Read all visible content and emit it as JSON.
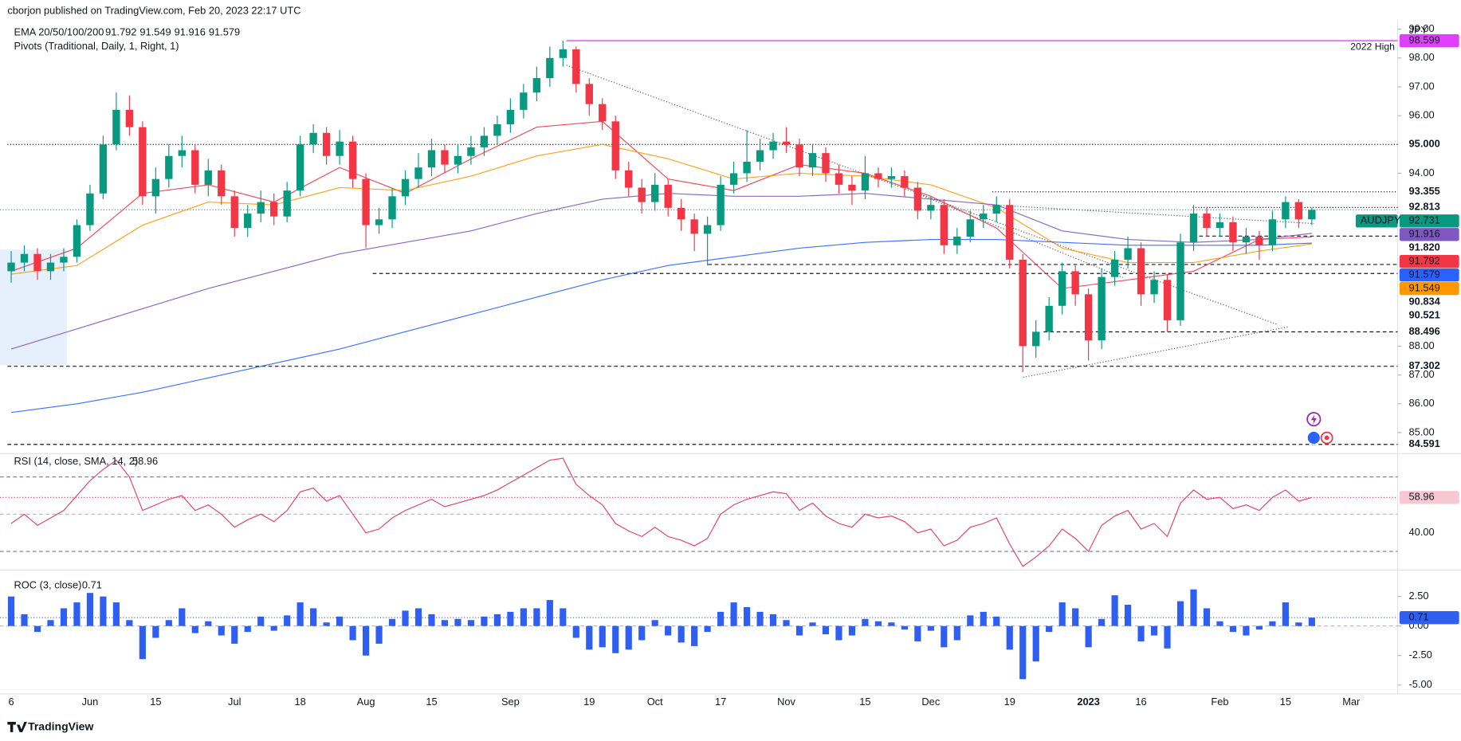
{
  "header": {
    "publisher": "cborjon published on TradingView.com, Feb 20, 2023 22:17 UTC"
  },
  "footer": {
    "brand": "TradingView"
  },
  "chart_data": [
    {
      "type": "candlestick",
      "symbol": "AUDJPY",
      "currency": "JPY",
      "categories": [
        "6",
        null,
        null,
        null,
        null,
        null,
        "Jun",
        null,
        null,
        null,
        null,
        "15",
        null,
        null,
        null,
        null,
        null,
        "Jul",
        null,
        null,
        null,
        null,
        "18",
        null,
        null,
        null,
        null,
        "Aug",
        null,
        null,
        null,
        null,
        "15",
        null,
        null,
        null,
        null,
        null,
        "Sep",
        null,
        null,
        null,
        null,
        null,
        "19",
        null,
        null,
        null,
        null,
        "Oct",
        null,
        null,
        null,
        null,
        "17",
        null,
        null,
        null,
        null,
        "Nov",
        null,
        null,
        null,
        null,
        null,
        "15",
        null,
        null,
        null,
        null,
        "Dec",
        null,
        null,
        null,
        null,
        null,
        "19",
        null,
        null,
        null,
        null,
        null,
        "2023",
        null,
        null,
        null,
        "16",
        null,
        null,
        null,
        null,
        null,
        "Feb",
        null,
        null,
        null,
        null,
        "15",
        null,
        null,
        null,
        null,
        "Mar",
        null
      ],
      "open": [
        90.6,
        90.9,
        91.2,
        90.6,
        90.9,
        91.1,
        92.2,
        93.3,
        95.0,
        96.2,
        95.6,
        93.2,
        93.8,
        94.6,
        94.8,
        93.6,
        94.1,
        93.2,
        92.1,
        92.6,
        93.0,
        92.5,
        93.4,
        95.0,
        95.4,
        94.6,
        95.1,
        93.8,
        92.2,
        92.4,
        93.2,
        93.8,
        94.2,
        94.8,
        94.3,
        94.6,
        94.9,
        95.3,
        95.7,
        96.2,
        96.8,
        97.3,
        98.0,
        98.3,
        97.1,
        96.4,
        95.8,
        94.1,
        93.5,
        93.0,
        93.6,
        92.8,
        92.4,
        91.9,
        92.2,
        93.6,
        94.0,
        94.4,
        94.8,
        95.1,
        95.0,
        94.2,
        94.7,
        94.0,
        93.6,
        93.4,
        94.0,
        93.8,
        93.9,
        93.5,
        92.7,
        92.9,
        91.5,
        91.8,
        92.4,
        92.6,
        92.9,
        91.0,
        88.0,
        88.5,
        89.4,
        90.6,
        89.8,
        88.2,
        90.4,
        91.0,
        91.4,
        89.8,
        90.3,
        88.9,
        91.6,
        92.6,
        92.1,
        92.3,
        91.6,
        91.8,
        91.5,
        92.4,
        93.0,
        92.4,
        null,
        null,
        null,
        null
      ],
      "high": [
        91.3,
        91.5,
        91.4,
        91.2,
        91.4,
        92.4,
        93.6,
        95.3,
        96.8,
        96.7,
        95.8,
        94.2,
        95.0,
        95.3,
        95.0,
        94.5,
        94.3,
        93.4,
        92.9,
        93.4,
        93.3,
        93.7,
        95.3,
        95.7,
        95.6,
        95.5,
        95.3,
        94.0,
        92.8,
        93.5,
        94.1,
        94.7,
        95.2,
        95.0,
        95.0,
        95.3,
        95.6,
        96.0,
        96.6,
        97.1,
        97.7,
        98.4,
        98.6,
        98.4,
        97.3,
        96.6,
        96.0,
        94.4,
        93.8,
        94.0,
        93.8,
        93.1,
        92.6,
        92.5,
        93.9,
        94.4,
        95.5,
        95.2,
        95.4,
        95.6,
        95.2,
        95.0,
        94.9,
        94.3,
        93.9,
        94.6,
        94.2,
        94.2,
        94.1,
        93.7,
        93.2,
        93.1,
        92.1,
        92.7,
        92.9,
        93.2,
        93.1,
        91.2,
        88.9,
        89.7,
        90.9,
        90.8,
        90.0,
        90.7,
        91.3,
        91.8,
        91.6,
        90.6,
        90.5,
        91.9,
        92.9,
        92.8,
        92.6,
        92.5,
        92.1,
        92.0,
        92.7,
        93.2,
        93.1,
        92.8,
        null,
        null,
        null,
        null
      ],
      "low": [
        90.2,
        90.6,
        90.3,
        90.3,
        90.6,
        90.9,
        92.0,
        93.1,
        94.8,
        95.3,
        92.9,
        92.6,
        93.5,
        94.2,
        93.3,
        93.2,
        92.9,
        91.8,
        91.8,
        92.3,
        92.2,
        92.3,
        93.2,
        94.7,
        94.3,
        94.3,
        93.5,
        91.4,
        91.9,
        92.1,
        92.9,
        93.5,
        93.9,
        94.0,
        94.0,
        94.3,
        94.6,
        95.0,
        95.4,
        95.9,
        96.5,
        97.0,
        97.7,
        96.8,
        96.0,
        95.5,
        93.8,
        93.2,
        92.6,
        92.7,
        92.5,
        92.0,
        91.3,
        90.8,
        92.0,
        93.3,
        93.7,
        94.1,
        94.5,
        94.7,
        93.9,
        93.9,
        93.7,
        93.3,
        92.9,
        93.1,
        93.5,
        93.5,
        93.2,
        92.4,
        92.4,
        91.2,
        91.2,
        91.6,
        92.1,
        92.3,
        90.7,
        87.1,
        87.6,
        88.2,
        89.1,
        89.4,
        87.5,
        87.9,
        90.1,
        90.7,
        89.4,
        89.5,
        88.5,
        88.7,
        91.3,
        91.8,
        91.8,
        91.3,
        91.2,
        91.0,
        91.3,
        92.1,
        92.1,
        92.2,
        null,
        null,
        null,
        null
      ],
      "close": [
        90.9,
        91.2,
        90.6,
        90.9,
        91.1,
        92.2,
        93.3,
        95.0,
        96.2,
        95.6,
        93.2,
        93.8,
        94.6,
        94.8,
        93.6,
        94.1,
        93.2,
        92.1,
        92.6,
        93.0,
        92.5,
        93.4,
        95.0,
        95.4,
        94.6,
        95.1,
        93.8,
        92.2,
        92.4,
        93.2,
        93.8,
        94.2,
        94.8,
        94.3,
        94.6,
        94.9,
        95.3,
        95.7,
        96.2,
        96.8,
        97.3,
        98.0,
        98.3,
        97.1,
        96.4,
        95.8,
        94.1,
        93.5,
        93.0,
        93.6,
        92.8,
        92.4,
        91.9,
        92.2,
        93.6,
        94.0,
        94.4,
        94.8,
        95.1,
        95.0,
        94.2,
        94.7,
        94.0,
        93.6,
        93.4,
        94.0,
        93.8,
        93.9,
        93.5,
        92.7,
        92.9,
        91.5,
        91.8,
        92.4,
        92.6,
        92.9,
        91.0,
        88.0,
        88.5,
        89.4,
        90.6,
        89.8,
        88.2,
        90.4,
        91.0,
        91.4,
        89.8,
        90.3,
        88.9,
        91.6,
        92.6,
        92.1,
        92.3,
        91.6,
        91.8,
        91.5,
        92.4,
        93.0,
        92.4,
        92.73,
        null,
        null,
        null,
        null
      ],
      "up_color": "#089981",
      "down_color": "#f23645",
      "ylim": [
        84.4,
        99.3
      ],
      "yticks": [
        {
          "value": 99,
          "label": "99.00"
        },
        {
          "value": 98,
          "label": "98.00"
        },
        {
          "value": 97,
          "label": "97.00"
        },
        {
          "value": 96,
          "label": "96.00"
        },
        {
          "value": 94,
          "label": "94.00"
        },
        {
          "value": 88,
          "label": "88.00"
        },
        {
          "value": 87,
          "label": "87.00"
        },
        {
          "value": 86,
          "label": "86.00"
        },
        {
          "value": 85,
          "label": "85.00"
        }
      ],
      "ema_label": "EMA 20/50/100/200",
      "ema": [
        {
          "color": "#f23645",
          "x": [
            0,
            5,
            10,
            15,
            20,
            25,
            30,
            35,
            40,
            45,
            50,
            55,
            60,
            65,
            70,
            75,
            80,
            85,
            90,
            95,
            99
          ],
          "values": [
            90.6,
            91.4,
            93.3,
            93.6,
            93.0,
            94.2,
            93.3,
            94.5,
            95.6,
            95.8,
            93.8,
            93.4,
            94.3,
            94.0,
            93.2,
            92.1,
            90.0,
            90.3,
            90.6,
            91.7,
            91.792
          ]
        },
        {
          "color": "#ff9800",
          "x": [
            0,
            5,
            10,
            15,
            20,
            25,
            30,
            35,
            40,
            45,
            50,
            55,
            60,
            65,
            70,
            75,
            80,
            85,
            90,
            95,
            99
          ],
          "values": [
            90.5,
            90.8,
            92.2,
            93.0,
            92.9,
            93.5,
            93.4,
            93.9,
            94.6,
            95.0,
            94.5,
            93.8,
            94.0,
            93.9,
            93.6,
            92.8,
            91.4,
            90.9,
            90.9,
            91.3,
            91.549
          ]
        },
        {
          "color": "#7e57c2",
          "x": [
            0,
            5,
            10,
            15,
            20,
            25,
            30,
            35,
            40,
            45,
            50,
            55,
            60,
            65,
            70,
            75,
            80,
            85,
            90,
            95,
            99
          ],
          "values": [
            87.9,
            88.6,
            89.3,
            90.0,
            90.6,
            91.2,
            91.6,
            92.0,
            92.6,
            93.1,
            93.3,
            93.2,
            93.2,
            93.3,
            93.1,
            92.9,
            92.0,
            91.7,
            91.6,
            91.7,
            91.916
          ]
        },
        {
          "color": "#2962ff",
          "x": [
            0,
            5,
            10,
            15,
            20,
            25,
            30,
            35,
            40,
            45,
            50,
            55,
            60,
            65,
            70,
            75,
            80,
            85,
            90,
            95,
            99
          ],
          "values": [
            85.7,
            86.0,
            86.4,
            86.9,
            87.4,
            87.9,
            88.5,
            89.1,
            89.7,
            90.3,
            90.8,
            91.1,
            91.4,
            91.6,
            91.7,
            91.7,
            91.6,
            91.5,
            91.5,
            91.5,
            91.579
          ]
        }
      ],
      "pivots_label": "Pivots (Traditional, Daily, 1, Right, 1)",
      "levels": [
        {
          "value": 98.599,
          "color": "#e040fb",
          "note": "2022 High"
        },
        {
          "value": 95,
          "label": "95.000"
        },
        {
          "value": 93.355
        },
        {
          "value": 92.813
        },
        {
          "value": 91.82,
          "label": "91.820"
        },
        {
          "value": 90.834
        },
        {
          "value": 90.521
        },
        {
          "value": 88.496
        },
        {
          "value": 87.302
        },
        {
          "value": 84.591
        }
      ],
      "last": {
        "name": "AUDJPY",
        "value": 92.731,
        "color": "#089981"
      }
    },
    {
      "type": "line",
      "title": "RSI (14, close, SMA, 14, 2)",
      "color": "#e5416d",
      "values": [
        45,
        50,
        44,
        48,
        52,
        60,
        68,
        74,
        79,
        70,
        52,
        55,
        58,
        60,
        52,
        55,
        50,
        43,
        47,
        50,
        46,
        52,
        62,
        64,
        57,
        60,
        50,
        40,
        42,
        48,
        52,
        55,
        58,
        54,
        56,
        58,
        60,
        63,
        67,
        71,
        75,
        79,
        80,
        66,
        60,
        55,
        45,
        41,
        38,
        43,
        38,
        36,
        33,
        37,
        50,
        55,
        58,
        60,
        62,
        61,
        52,
        56,
        49,
        45,
        43,
        50,
        48,
        49,
        46,
        40,
        42,
        33,
        36,
        43,
        45,
        48,
        34,
        22,
        27,
        33,
        42,
        37,
        30,
        44,
        49,
        52,
        42,
        45,
        38,
        56,
        63,
        58,
        59,
        53,
        55,
        52,
        59,
        63,
        57,
        58.96
      ],
      "ylim": [
        22,
        81
      ],
      "yticks": [
        {
          "value": 40,
          "label": "40.00"
        }
      ],
      "bands": [
        70,
        50,
        30
      ]
    },
    {
      "type": "bar",
      "title": "ROC (3, close)",
      "color": "#2f5ff0",
      "values": [
        2.5,
        1.0,
        -0.5,
        0.5,
        1.5,
        2.0,
        2.8,
        2.5,
        2.0,
        0.5,
        -2.8,
        -1.0,
        0.5,
        1.5,
        -0.6,
        0.4,
        -0.8,
        -1.5,
        -0.5,
        0.8,
        -0.4,
        0.9,
        2.0,
        1.5,
        0.3,
        0.8,
        -1.2,
        -2.5,
        -1.5,
        0.6,
        1.3,
        1.5,
        1.0,
        0.5,
        0.6,
        0.5,
        0.8,
        1.0,
        1.2,
        1.5,
        1.5,
        2.2,
        1.5,
        -1.0,
        -2.0,
        -1.8,
        -2.3,
        -2.0,
        -1.2,
        0.5,
        -0.8,
        -1.4,
        -1.7,
        -0.5,
        1.2,
        2.0,
        1.6,
        1.2,
        1.0,
        0.5,
        -0.8,
        0.3,
        -0.7,
        -1.2,
        -0.8,
        0.6,
        0.4,
        0.3,
        -0.3,
        -1.3,
        -0.4,
        -1.8,
        -1.2,
        0.9,
        1.2,
        0.8,
        -2.0,
        -4.5,
        -3.0,
        -0.5,
        2.0,
        1.5,
        -1.8,
        0.6,
        2.6,
        1.8,
        -1.3,
        -0.8,
        -1.9,
        2.1,
        3.1,
        1.5,
        0.4,
        -0.5,
        -0.8,
        -0.3,
        0.4,
        2.0,
        0.3,
        0.71
      ],
      "ylim": [
        -5.75,
        4.5
      ],
      "yticks": [
        {
          "value": 2.5,
          "label": "2.50"
        },
        {
          "value": 0,
          "label": "0.00"
        },
        {
          "value": -2.5,
          "label": "-2.50"
        },
        {
          "value": -5,
          "label": "-5.00"
        }
      ]
    }
  ]
}
